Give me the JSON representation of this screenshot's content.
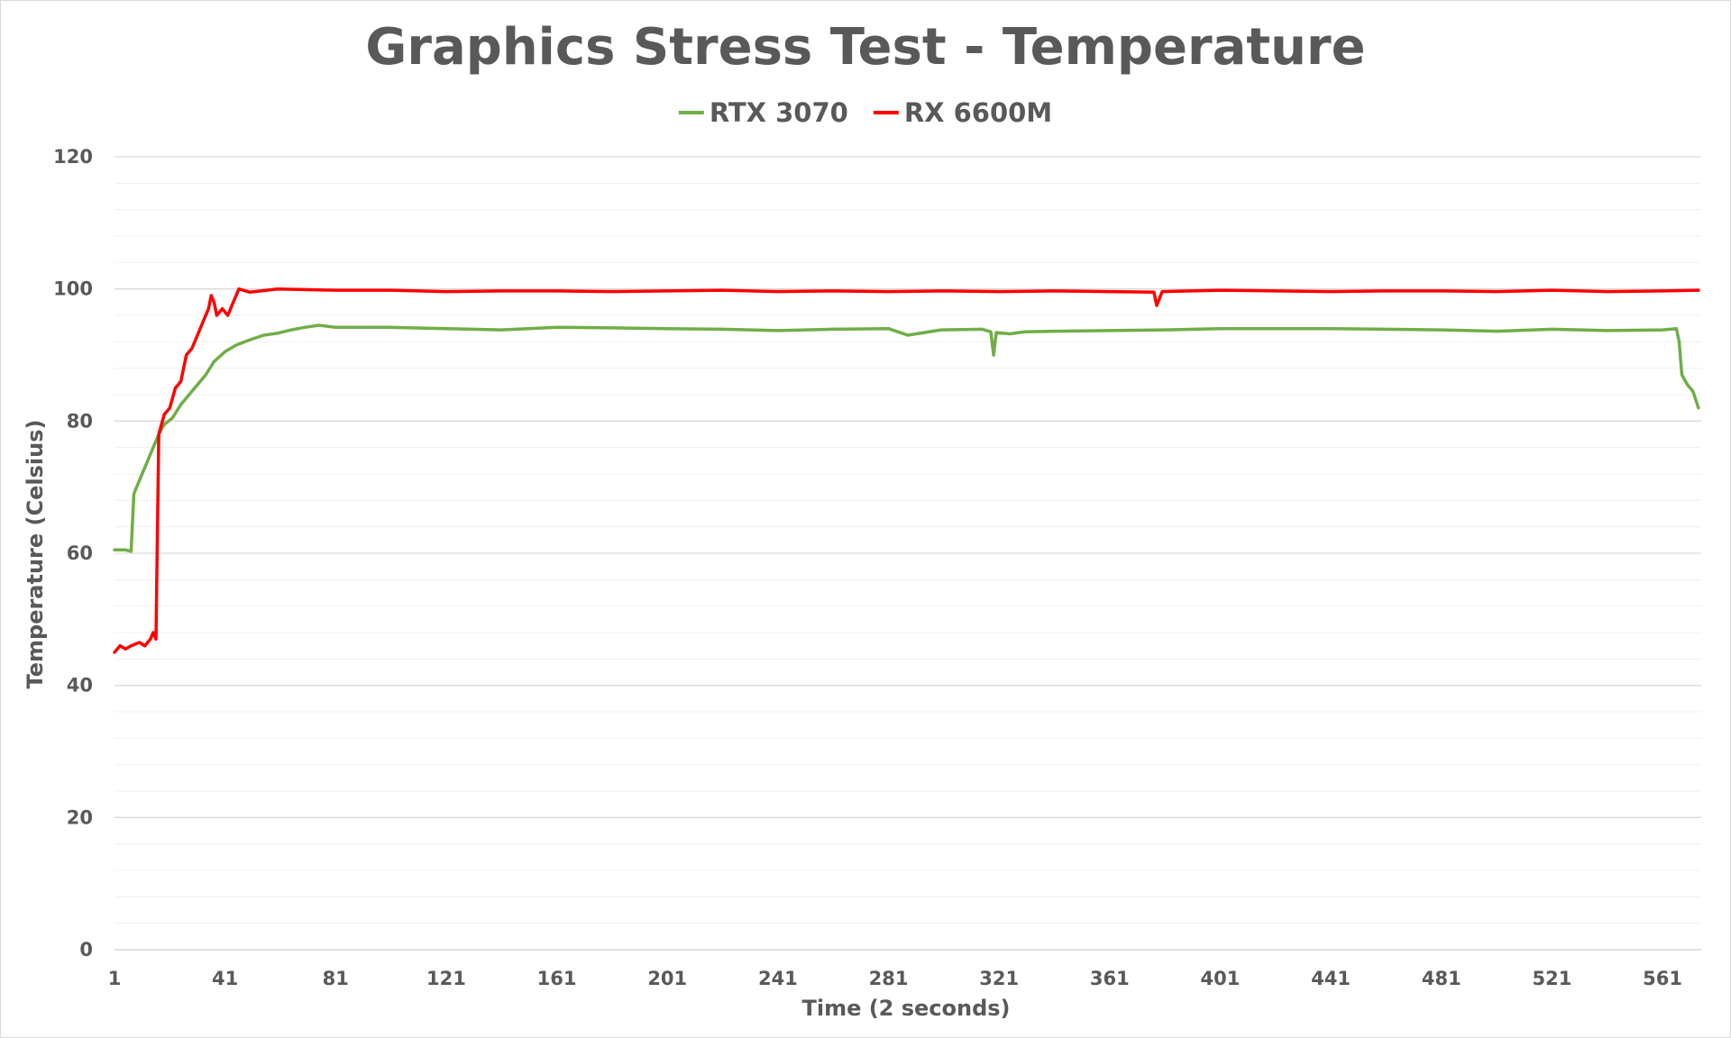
{
  "chart_data": {
    "type": "line",
    "title": "Graphics Stress Test - Temperature",
    "xlabel": "Time (2 seconds)",
    "ylabel": "Temperature (Celsius)",
    "ylim": [
      0,
      120
    ],
    "yticks": [
      0,
      20,
      40,
      60,
      80,
      100,
      120
    ],
    "xlim": [
      1,
      575
    ],
    "xticks": [
      1,
      41,
      81,
      121,
      161,
      201,
      241,
      281,
      321,
      361,
      401,
      441,
      481,
      521,
      561
    ],
    "grid": true,
    "legend_position": "top",
    "series": [
      {
        "name": "RTX 3070",
        "color": "#70ad47",
        "points": [
          [
            1,
            60.5
          ],
          [
            5,
            60.5
          ],
          [
            7,
            60.3
          ],
          [
            8,
            69
          ],
          [
            10,
            71
          ],
          [
            13,
            74
          ],
          [
            15,
            76
          ],
          [
            17,
            78
          ],
          [
            19,
            79.5
          ],
          [
            22,
            80.5
          ],
          [
            25,
            82.5
          ],
          [
            28,
            84
          ],
          [
            31,
            85.5
          ],
          [
            34,
            87
          ],
          [
            37,
            89
          ],
          [
            41,
            90.5
          ],
          [
            45,
            91.5
          ],
          [
            50,
            92.3
          ],
          [
            55,
            93
          ],
          [
            60,
            93.3
          ],
          [
            65,
            93.8
          ],
          [
            70,
            94.2
          ],
          [
            75,
            94.5
          ],
          [
            81,
            94.2
          ],
          [
            100,
            94.2
          ],
          [
            121,
            94
          ],
          [
            141,
            93.8
          ],
          [
            161,
            94.2
          ],
          [
            181,
            94.1
          ],
          [
            201,
            94
          ],
          [
            221,
            93.9
          ],
          [
            241,
            93.7
          ],
          [
            261,
            93.9
          ],
          [
            281,
            94
          ],
          [
            288,
            93
          ],
          [
            300,
            93.8
          ],
          [
            315,
            93.9
          ],
          [
            318,
            93.5
          ],
          [
            319,
            90
          ],
          [
            320,
            93.4
          ],
          [
            325,
            93.2
          ],
          [
            330,
            93.5
          ],
          [
            341,
            93.6
          ],
          [
            361,
            93.7
          ],
          [
            381,
            93.8
          ],
          [
            401,
            94
          ],
          [
            421,
            94
          ],
          [
            441,
            94
          ],
          [
            461,
            93.9
          ],
          [
            481,
            93.8
          ],
          [
            501,
            93.6
          ],
          [
            521,
            93.9
          ],
          [
            541,
            93.7
          ],
          [
            561,
            93.8
          ],
          [
            566,
            94
          ],
          [
            567,
            92
          ],
          [
            568,
            87
          ],
          [
            570,
            85.5
          ],
          [
            572,
            84.5
          ],
          [
            574,
            82
          ]
        ]
      },
      {
        "name": "RX 6600M",
        "color": "#ff0000",
        "points": [
          [
            1,
            45
          ],
          [
            3,
            46
          ],
          [
            5,
            45.5
          ],
          [
            7,
            46
          ],
          [
            10,
            46.5
          ],
          [
            12,
            46
          ],
          [
            14,
            47
          ],
          [
            15,
            48
          ],
          [
            16,
            47
          ],
          [
            17,
            78
          ],
          [
            19,
            81
          ],
          [
            21,
            82
          ],
          [
            23,
            85
          ],
          [
            25,
            86
          ],
          [
            27,
            90
          ],
          [
            29,
            91
          ],
          [
            31,
            93
          ],
          [
            33,
            95
          ],
          [
            35,
            97
          ],
          [
            36,
            99
          ],
          [
            37,
            98
          ],
          [
            38,
            96
          ],
          [
            40,
            97
          ],
          [
            42,
            96
          ],
          [
            44,
            98
          ],
          [
            46,
            100
          ],
          [
            50,
            99.5
          ],
          [
            60,
            100
          ],
          [
            81,
            99.8
          ],
          [
            101,
            99.8
          ],
          [
            121,
            99.6
          ],
          [
            141,
            99.7
          ],
          [
            161,
            99.7
          ],
          [
            181,
            99.6
          ],
          [
            201,
            99.7
          ],
          [
            221,
            99.8
          ],
          [
            241,
            99.6
          ],
          [
            261,
            99.7
          ],
          [
            281,
            99.6
          ],
          [
            301,
            99.7
          ],
          [
            321,
            99.6
          ],
          [
            341,
            99.7
          ],
          [
            361,
            99.6
          ],
          [
            377,
            99.5
          ],
          [
            378,
            97.5
          ],
          [
            380,
            99.6
          ],
          [
            401,
            99.8
          ],
          [
            421,
            99.7
          ],
          [
            441,
            99.6
          ],
          [
            461,
            99.7
          ],
          [
            481,
            99.7
          ],
          [
            501,
            99.6
          ],
          [
            521,
            99.8
          ],
          [
            541,
            99.6
          ],
          [
            561,
            99.7
          ],
          [
            574,
            99.8
          ]
        ]
      }
    ]
  }
}
